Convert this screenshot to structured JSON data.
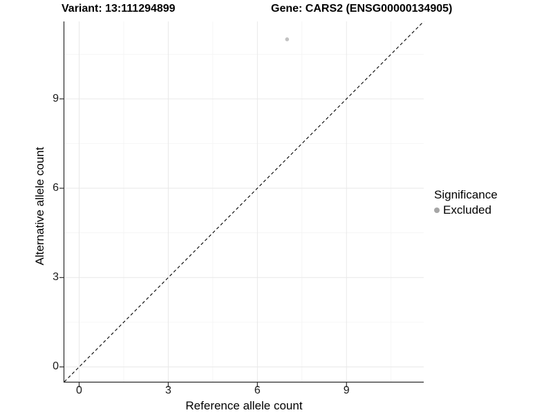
{
  "chart_data": {
    "type": "scatter",
    "title_left": "Variant: 13:111294899",
    "title_right": "Gene: CARS2 (ENSG00000134905)",
    "xlabel": "Reference allele count",
    "ylabel": "Alternative allele count",
    "xlim": [
      -0.5,
      11.6
    ],
    "ylim": [
      -0.5,
      11.6
    ],
    "x_ticks": [
      0,
      3,
      6,
      9
    ],
    "y_ticks": [
      0,
      3,
      6,
      9
    ],
    "minor_ticks": [
      1.5,
      4.5,
      7.5,
      10.5
    ],
    "grid": true,
    "points": [
      {
        "x": 7,
        "y": 11,
        "series": "Excluded"
      }
    ],
    "reference_line": {
      "type": "identity",
      "slope": 1,
      "intercept": 0,
      "style": "dashed",
      "color": "#000000"
    },
    "legend": {
      "title": "Significance",
      "position": "right",
      "items": [
        {
          "label": "Excluded",
          "color": "#a6a6a6"
        }
      ]
    },
    "colors": {
      "point": "#c2c2c2",
      "grid_major": "#e8e8e8",
      "grid_minor": "#f3f3f3",
      "axis_line": "#2b2b2b"
    }
  }
}
